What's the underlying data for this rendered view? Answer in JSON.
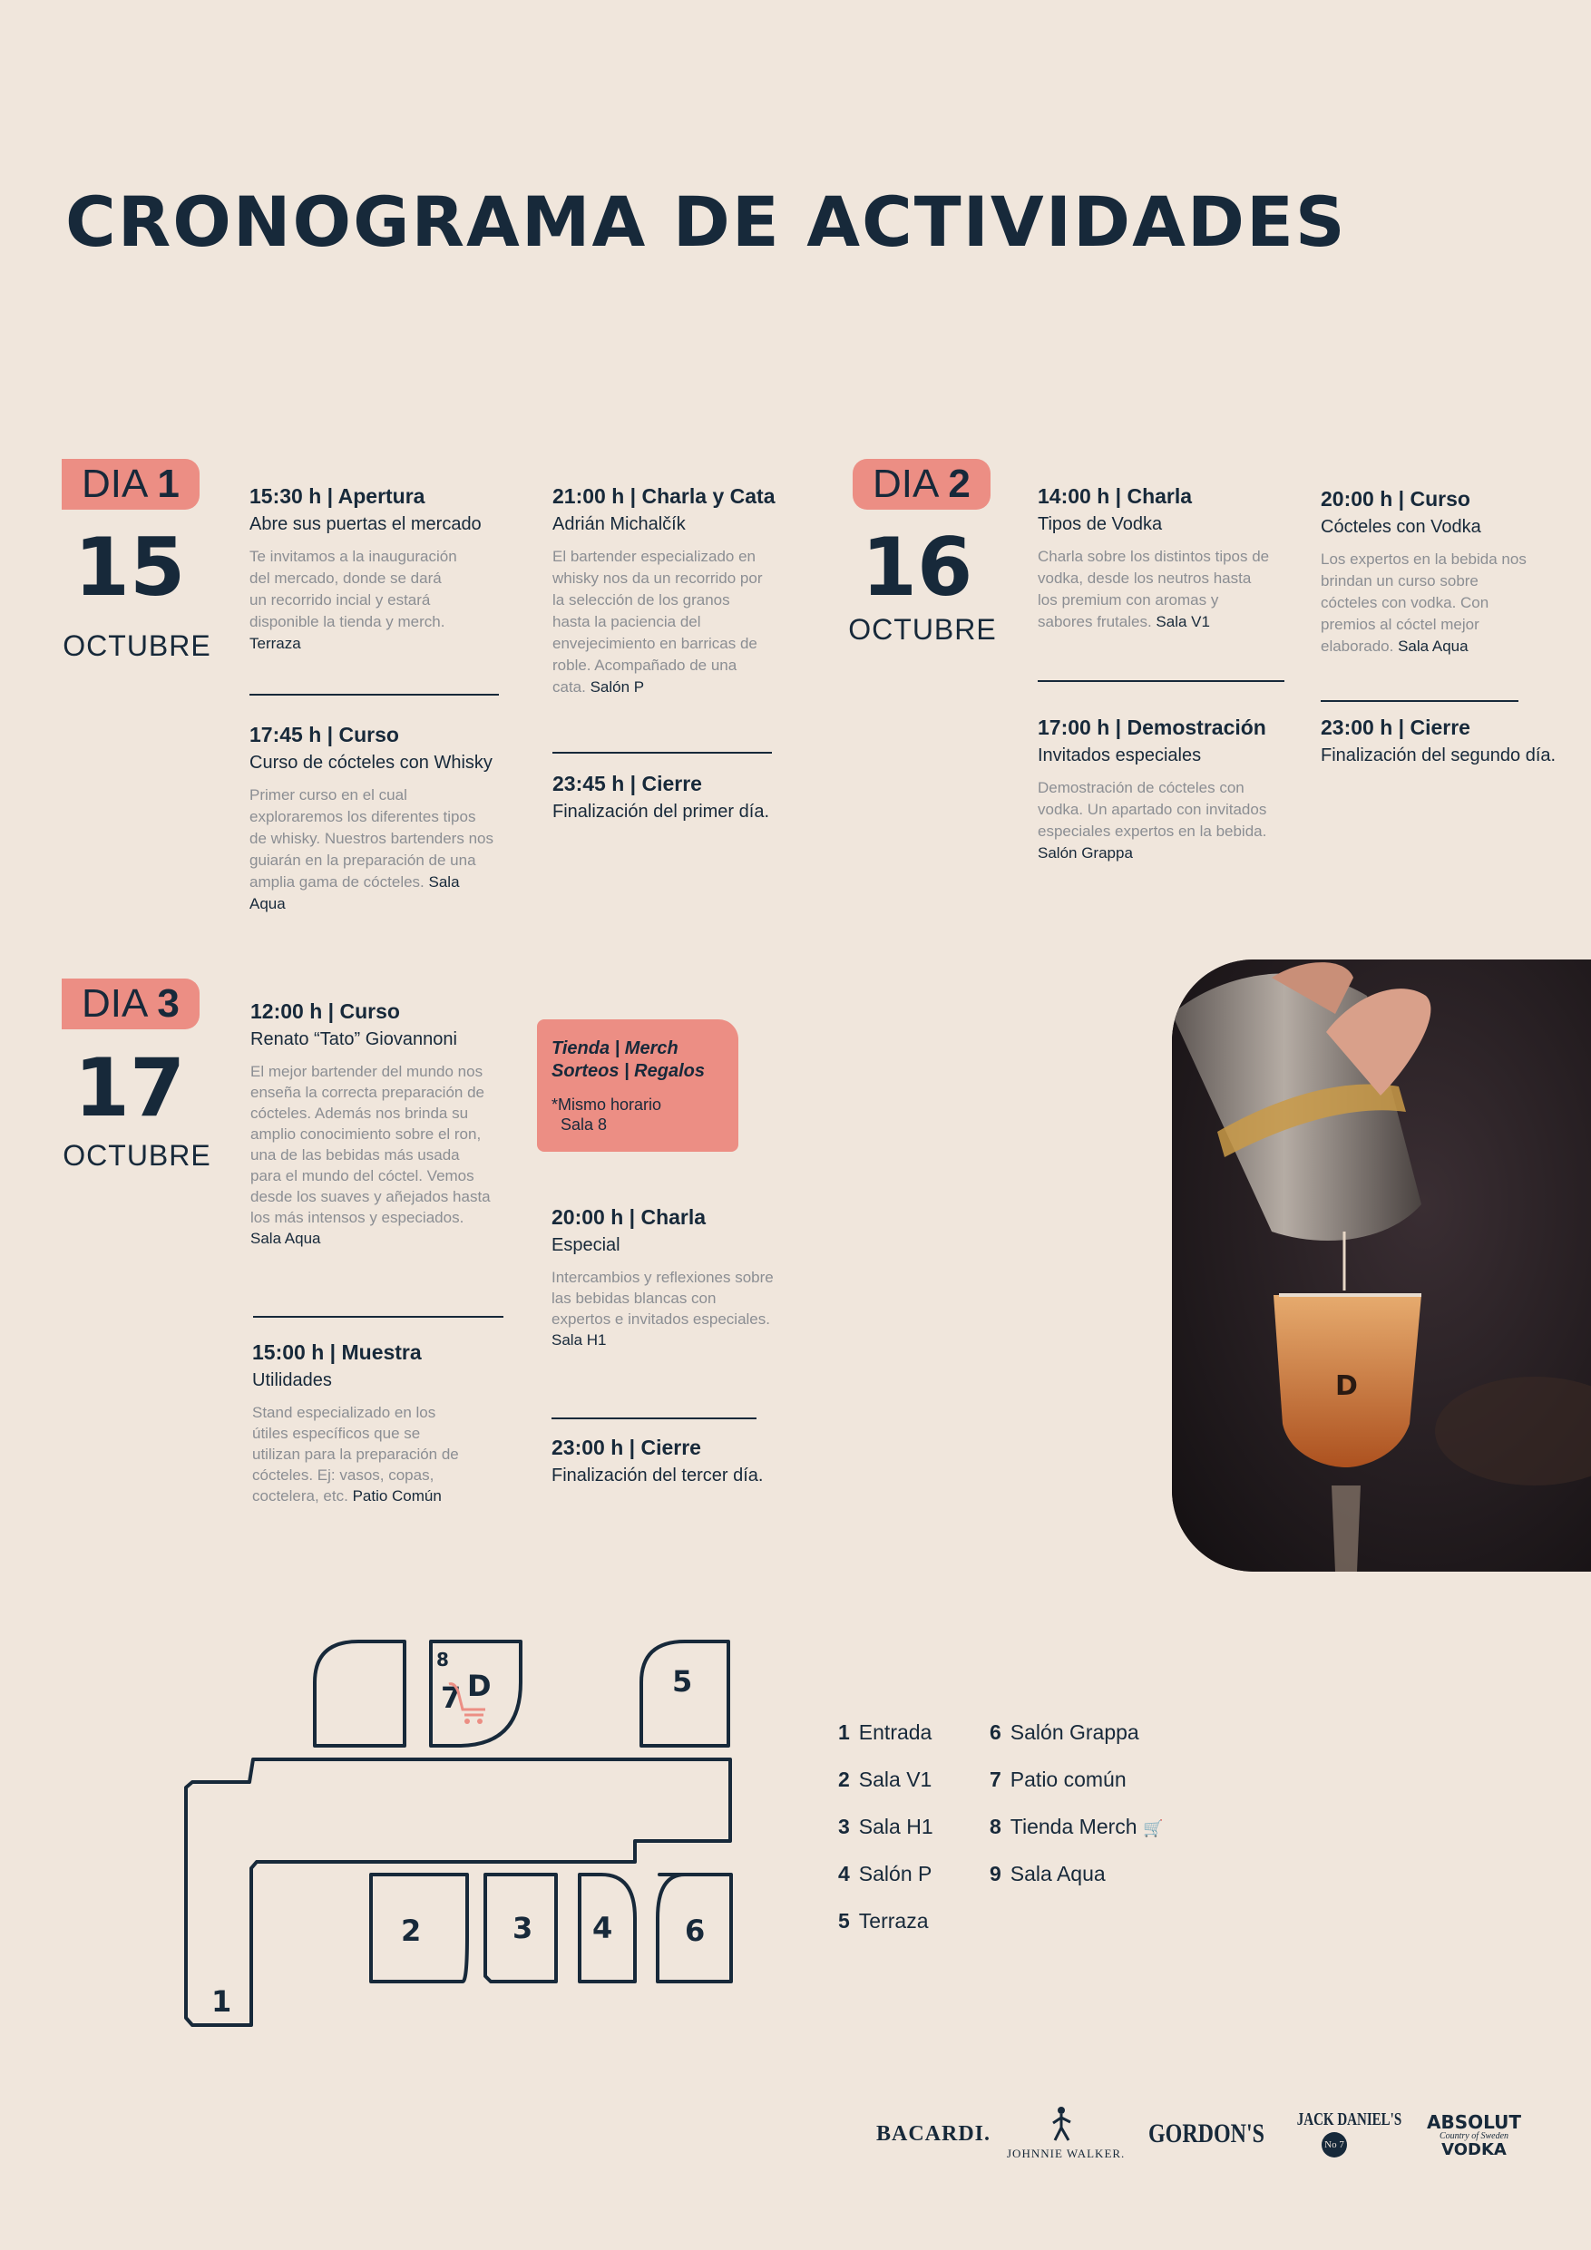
{
  "title": "CRONOGRAMA DE ACTIVIDADES",
  "days": [
    {
      "label": "DIA",
      "number": "1",
      "date": "15",
      "month": "OCTUBRE",
      "events": [
        {
          "time": "15:30 h | Apertura",
          "subtitle": "Abre sus puertas el mercado",
          "desc": "Te invitamos a la inauguración del mercado, donde se dará un recorrido incial y estará disponible la tienda y merch.",
          "room": "Terraza"
        },
        {
          "time": "17:45 h | Curso",
          "subtitle": "Curso de cócteles con Whisky",
          "desc": "Primer curso en el cual exploraremos los diferentes tipos de whisky. Nuestros bartenders nos guiarán en la preparación de una amplia gama de cócteles.",
          "room": "Sala Aqua"
        },
        {
          "time": "21:00 h | Charla y Cata",
          "subtitle": "Adrián Michalčík",
          "desc": "El bartender especializado en whisky nos da un recorrido por la selección de los granos hasta la paciencia del envejecimiento en barricas de roble. Acompañado de una cata.",
          "room": "Salón P"
        },
        {
          "time": "23:45 h | Cierre",
          "subtitle": "Finalización del primer día.",
          "desc": "",
          "room": ""
        }
      ]
    },
    {
      "label": "DIA",
      "number": "2",
      "date": "16",
      "month": "OCTUBRE",
      "events": [
        {
          "time": "14:00 h | Charla",
          "subtitle": "Tipos de Vodka",
          "desc": "Charla sobre los distintos tipos de vodka, desde los neutros hasta los premium con aromas y sabores frutales.",
          "room": "Sala V1"
        },
        {
          "time": "17:00 h | Demostración",
          "subtitle": "Invitados especiales",
          "desc": "Demostración de cócteles con vodka. Un apartado con invitados especiales expertos en la bebida.",
          "room": "Salón Grappa"
        },
        {
          "time": "20:00 h | Curso",
          "subtitle": "Cócteles con Vodka",
          "desc": "Los expertos en la bebida nos brindan un curso sobre cócteles con vodka. Con premios al cóctel mejor elaborado.",
          "room": "Sala Aqua"
        },
        {
          "time": "23:00 h | Cierre",
          "subtitle": "Finalización del segundo día.",
          "desc": "",
          "room": ""
        }
      ]
    },
    {
      "label": "DIA",
      "number": "3",
      "date": "17",
      "month": "OCTUBRE",
      "events": [
        {
          "time": "12:00 h | Curso",
          "subtitle": "Renato “Tato” Giovannoni",
          "desc": "El mejor bartender del mundo nos enseña la correcta preparación de cócteles. Además nos brinda su amplio conocimiento sobre el ron, una de las bebidas más usada para el mundo del cóctel. Vemos desde los suaves y añejados hasta los más intensos y especiados.",
          "room": "Sala Aqua"
        },
        {
          "time": "15:00 h | Muestra",
          "subtitle": "Utilidades",
          "desc": "Stand especializado en los útiles específicos que se utilizan para la preparación de cócteles. Ej: vasos, copas, coctelera, etc.",
          "room": "Patio Común"
        },
        {
          "time": "20:00 h | Charla",
          "subtitle": "Especial",
          "desc": "Intercambios y reflexiones sobre las bebidas blancas con expertos e invitados especiales.",
          "room": "Sala H1"
        },
        {
          "time": "23:00 h | Cierre",
          "subtitle": "Finalización del tercer día.",
          "desc": "",
          "room": ""
        }
      ]
    }
  ],
  "merch": {
    "title1": "Tienda | Merch",
    "title2": "Sorteos | Regalos",
    "note1": "*Mismo horario",
    "note2": "Sala 8"
  },
  "map": {
    "rooms": [
      "1",
      "2",
      "3",
      "4",
      "5",
      "6",
      "7",
      "8"
    ],
    "logo_letter": "D"
  },
  "legend": [
    {
      "num": "1",
      "name": "Entrada"
    },
    {
      "num": "2",
      "name": "Sala V1"
    },
    {
      "num": "3",
      "name": "Sala H1"
    },
    {
      "num": "4",
      "name": "Salón P"
    },
    {
      "num": "5",
      "name": "Terraza"
    },
    {
      "num": "6",
      "name": "Salón Grappa"
    },
    {
      "num": "7",
      "name": "Patio común"
    },
    {
      "num": "8",
      "name": "Tienda Merch"
    },
    {
      "num": "9",
      "name": "Sala Aqua"
    }
  ],
  "sponsors": {
    "bacardi": "BACARDI.",
    "johnnie": "JOHNNIE WALKER.",
    "gordons": "GORDON'S",
    "jack": "JACK DANIEL'S",
    "jack_no": "No 7",
    "absolut1": "ABSOLUT",
    "absolut2": "Country of Sweden",
    "absolut3": "VODKA"
  },
  "colors": {
    "navy": "#17293a",
    "salmon": "#ec8e84",
    "background": "#f0e6dc",
    "grey_text": "#8b8e93"
  }
}
